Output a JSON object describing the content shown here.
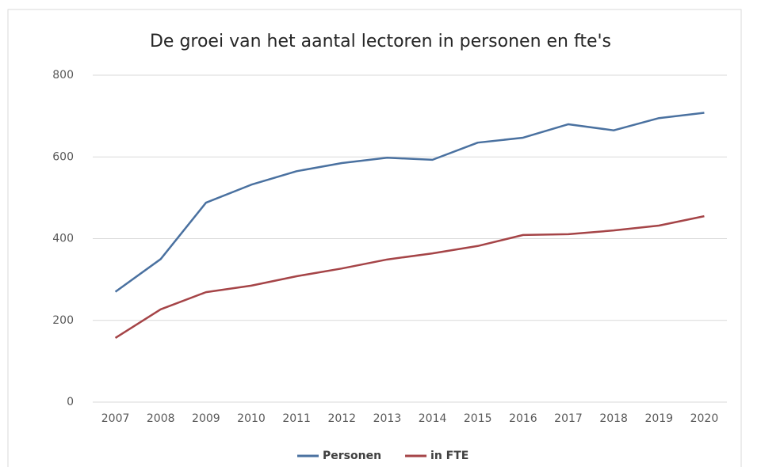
{
  "chart_data": {
    "type": "line",
    "title": "De groei van het aantal lectoren in personen en fte's",
    "categories": [
      "2007",
      "2008",
      "2009",
      "2010",
      "2011",
      "2012",
      "2013",
      "2014",
      "2015",
      "2016",
      "2017",
      "2018",
      "2019",
      "2020"
    ],
    "series": [
      {
        "name": "Personen",
        "color": "#4a71a0",
        "values": [
          270,
          350,
          488,
          532,
          565,
          585,
          598,
          593,
          635,
          647,
          680,
          665,
          695,
          708
        ]
      },
      {
        "name": "in FTE",
        "color": "#a54447",
        "values": [
          157,
          227,
          269,
          285,
          308,
          327,
          349,
          364,
          382,
          409,
          411,
          420,
          432,
          455
        ]
      }
    ],
    "ylim": [
      0,
      800
    ],
    "yticks": [
      0,
      200,
      400,
      600,
      800
    ],
    "grid": true,
    "legend": "bottom"
  }
}
